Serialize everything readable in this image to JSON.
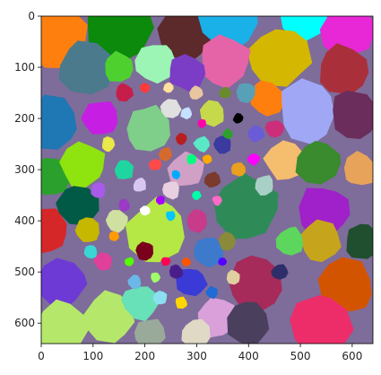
{
  "chart_data": {
    "type": "heatmap",
    "title": "",
    "xlabel": "",
    "ylabel": "",
    "grid": false,
    "legend": "none",
    "xlim": [
      0,
      640
    ],
    "ylim": [
      640,
      0
    ],
    "x_ticks": [
      0,
      100,
      200,
      300,
      400,
      500,
      600
    ],
    "y_ticks": [
      0,
      100,
      200,
      300,
      400,
      500,
      600
    ],
    "description_of_marks": "Segmentation-style label image: many irregular colored regions of varying size, larger toward the edges and smaller toward the center.",
    "regions": [
      {
        "cx": 30,
        "cy": 40,
        "r": 60,
        "color": "#ff7f0e"
      },
      {
        "cx": 150,
        "cy": 20,
        "r": 70,
        "color": "#0b8a0b"
      },
      {
        "cx": 275,
        "cy": 35,
        "r": 55,
        "color": "#5c2a2a"
      },
      {
        "cx": 365,
        "cy": 10,
        "r": 60,
        "color": "#1ab0e8"
      },
      {
        "cx": 505,
        "cy": 5,
        "r": 45,
        "color": "#00ffff"
      },
      {
        "cx": 590,
        "cy": 30,
        "r": 50,
        "color": "#e827d6"
      },
      {
        "cx": 460,
        "cy": 80,
        "r": 60,
        "color": "#d4b700"
      },
      {
        "cx": 585,
        "cy": 105,
        "r": 50,
        "color": "#a9303a"
      },
      {
        "cx": 355,
        "cy": 90,
        "r": 50,
        "color": "#e564a8"
      },
      {
        "cx": 85,
        "cy": 100,
        "r": 55,
        "color": "#4a7a8c"
      },
      {
        "cx": 150,
        "cy": 100,
        "r": 30,
        "color": "#4ed12e"
      },
      {
        "cx": 220,
        "cy": 90,
        "r": 38,
        "color": "#9cf5b4"
      },
      {
        "cx": 280,
        "cy": 110,
        "r": 35,
        "color": "#7b3cc6"
      },
      {
        "cx": 20,
        "cy": 210,
        "r": 55,
        "color": "#1f77b4"
      },
      {
        "cx": 115,
        "cy": 200,
        "r": 35,
        "color": "#c61ee3"
      },
      {
        "cx": 205,
        "cy": 220,
        "r": 45,
        "color": "#7fce8a"
      },
      {
        "cx": 435,
        "cy": 160,
        "r": 35,
        "color": "#ff7f0e"
      },
      {
        "cx": 515,
        "cy": 185,
        "r": 60,
        "color": "#a0a8f5"
      },
      {
        "cx": 605,
        "cy": 195,
        "r": 50,
        "color": "#6b2d5c"
      },
      {
        "cx": 20,
        "cy": 310,
        "r": 40,
        "color": "#2ca02c"
      },
      {
        "cx": 80,
        "cy": 290,
        "r": 45,
        "color": "#8fe30e"
      },
      {
        "cx": 70,
        "cy": 370,
        "r": 40,
        "color": "#005a45"
      },
      {
        "cx": 470,
        "cy": 280,
        "r": 40,
        "color": "#f5bd6e"
      },
      {
        "cx": 535,
        "cy": 285,
        "r": 45,
        "color": "#3a8a2e"
      },
      {
        "cx": 615,
        "cy": 300,
        "r": 35,
        "color": "#e8a35a"
      },
      {
        "cx": 10,
        "cy": 420,
        "r": 45,
        "color": "#d62728"
      },
      {
        "cx": 90,
        "cy": 420,
        "r": 25,
        "color": "#c6b700"
      },
      {
        "cx": 225,
        "cy": 420,
        "r": 60,
        "color": "#b5e845"
      },
      {
        "cx": 395,
        "cy": 375,
        "r": 65,
        "color": "#2e8b57"
      },
      {
        "cx": 545,
        "cy": 380,
        "r": 50,
        "color": "#a020c9"
      },
      {
        "cx": 540,
        "cy": 440,
        "r": 40,
        "color": "#c6a51c"
      },
      {
        "cx": 620,
        "cy": 440,
        "r": 35,
        "color": "#1f4f2f"
      },
      {
        "cx": 40,
        "cy": 520,
        "r": 50,
        "color": "#6e3ad6"
      },
      {
        "cx": 410,
        "cy": 520,
        "r": 55,
        "color": "#a62b5a"
      },
      {
        "cx": 590,
        "cy": 530,
        "r": 55,
        "color": "#d35400"
      },
      {
        "cx": 40,
        "cy": 610,
        "r": 55,
        "color": "#b5e86a"
      },
      {
        "cx": 130,
        "cy": 590,
        "r": 50,
        "color": "#b5e86a"
      },
      {
        "cx": 190,
        "cy": 560,
        "r": 35,
        "color": "#68e0b8"
      },
      {
        "cx": 290,
        "cy": 520,
        "r": 30,
        "color": "#3a3ad6"
      },
      {
        "cx": 340,
        "cy": 590,
        "r": 40,
        "color": "#d9a0d9"
      },
      {
        "cx": 400,
        "cy": 600,
        "r": 45,
        "color": "#4a3f5c"
      },
      {
        "cx": 540,
        "cy": 600,
        "r": 60,
        "color": "#ec2d6a"
      },
      {
        "cx": 210,
        "cy": 620,
        "r": 30,
        "color": "#9aaa9a"
      },
      {
        "cx": 300,
        "cy": 620,
        "r": 30,
        "color": "#e0d9c6"
      },
      {
        "cx": 280,
        "cy": 300,
        "r": 35,
        "color": "#d0a0c6"
      },
      {
        "cx": 320,
        "cy": 460,
        "r": 30,
        "color": "#3d7acb"
      },
      {
        "cx": 200,
        "cy": 460,
        "r": 18,
        "color": "#7a001c"
      },
      {
        "cx": 120,
        "cy": 480,
        "r": 18,
        "color": "#e0409a"
      },
      {
        "cx": 145,
        "cy": 400,
        "r": 22,
        "color": "#cfe0a0"
      },
      {
        "cx": 480,
        "cy": 440,
        "r": 28,
        "color": "#5cd65c"
      },
      {
        "cx": 250,
        "cy": 180,
        "r": 20,
        "color": "#e0e0e0"
      },
      {
        "cx": 330,
        "cy": 190,
        "r": 25,
        "color": "#c6d94a"
      },
      {
        "cx": 350,
        "cy": 250,
        "r": 18,
        "color": "#3a3aa0"
      },
      {
        "cx": 250,
        "cy": 340,
        "r": 18,
        "color": "#e8d0e0"
      },
      {
        "cx": 450,
        "cy": 220,
        "r": 18,
        "color": "#cc2e7a"
      },
      {
        "cx": 395,
        "cy": 150,
        "r": 20,
        "color": "#58a0b8"
      },
      {
        "cx": 160,
        "cy": 300,
        "r": 20,
        "color": "#1fd6a0"
      },
      {
        "cx": 300,
        "cy": 400,
        "r": 22,
        "color": "#c83a8a"
      },
      {
        "cx": 160,
        "cy": 150,
        "r": 18,
        "color": "#c61e4a"
      },
      {
        "cx": 430,
        "cy": 330,
        "r": 20,
        "color": "#a8d0c6"
      },
      {
        "cx": 360,
        "cy": 440,
        "r": 18,
        "color": "#8a8a3a"
      },
      {
        "cx": 330,
        "cy": 320,
        "r": 16,
        "color": "#7a3a2e"
      },
      {
        "cx": 190,
        "cy": 330,
        "r": 14,
        "color": "#d6c6f0"
      },
      {
        "cx": 110,
        "cy": 340,
        "r": 16,
        "color": "#a85ae8"
      },
      {
        "cx": 130,
        "cy": 250,
        "r": 14,
        "color": "#e8e84a"
      },
      {
        "cx": 415,
        "cy": 230,
        "r": 16,
        "color": "#6a5cd6"
      },
      {
        "cx": 240,
        "cy": 270,
        "r": 14,
        "color": "#d66a2e"
      },
      {
        "cx": 310,
        "cy": 250,
        "r": 16,
        "color": "#5ae8c6"
      },
      {
        "cx": 270,
        "cy": 240,
        "r": 12,
        "color": "#b81e1e"
      },
      {
        "cx": 380,
        "cy": 300,
        "r": 14,
        "color": "#e8a01e"
      },
      {
        "cx": 180,
        "cy": 520,
        "r": 14,
        "color": "#6ab8e8"
      },
      {
        "cx": 260,
        "cy": 500,
        "r": 14,
        "color": "#4a1e8a"
      },
      {
        "cx": 230,
        "cy": 550,
        "r": 14,
        "color": "#8ae0f0"
      },
      {
        "cx": 370,
        "cy": 510,
        "r": 14,
        "color": "#e0d0a0"
      },
      {
        "cx": 95,
        "cy": 460,
        "r": 14,
        "color": "#3ad6d6"
      },
      {
        "cx": 460,
        "cy": 500,
        "r": 16,
        "color": "#2e2e6a"
      },
      {
        "cx": 300,
        "cy": 150,
        "r": 14,
        "color": "#e8c6a0"
      },
      {
        "cx": 355,
        "cy": 150,
        "r": 12,
        "color": "#6a8a2e"
      },
      {
        "cx": 280,
        "cy": 190,
        "r": 12,
        "color": "#c6e0ff"
      },
      {
        "cx": 220,
        "cy": 290,
        "r": 12,
        "color": "#ff4a4a"
      },
      {
        "cx": 160,
        "cy": 370,
        "r": 12,
        "color": "#9a3ac6"
      },
      {
        "cx": 270,
        "cy": 560,
        "r": 12,
        "color": "#ffd600"
      },
      {
        "cx": 330,
        "cy": 540,
        "r": 12,
        "color": "#1e6ad6"
      },
      {
        "cx": 410,
        "cy": 280,
        "r": 12,
        "color": "#ff00ff"
      },
      {
        "cx": 200,
        "cy": 380,
        "r": 10,
        "color": "#ffffff"
      },
      {
        "cx": 250,
        "cy": 390,
        "r": 10,
        "color": "#00c6ff"
      },
      {
        "cx": 340,
        "cy": 360,
        "r": 10,
        "color": "#ff6ac6"
      },
      {
        "cx": 220,
        "cy": 510,
        "r": 10,
        "color": "#a0ff6a"
      },
      {
        "cx": 140,
        "cy": 430,
        "r": 10,
        "color": "#ff9a00"
      },
      {
        "cx": 380,
        "cy": 200,
        "r": 10,
        "color": "#000000"
      },
      {
        "cx": 290,
        "cy": 280,
        "r": 10,
        "color": "#00ff7f"
      },
      {
        "cx": 200,
        "cy": 140,
        "r": 10,
        "color": "#ff3a3a"
      },
      {
        "cx": 245,
        "cy": 140,
        "r": 10,
        "color": "#ffe0a0"
      },
      {
        "cx": 360,
        "cy": 230,
        "r": 10,
        "color": "#2ea02e"
      },
      {
        "cx": 310,
        "cy": 210,
        "r": 9,
        "color": "#ff00aa"
      },
      {
        "cx": 260,
        "cy": 310,
        "r": 9,
        "color": "#00aaff"
      },
      {
        "cx": 320,
        "cy": 280,
        "r": 9,
        "color": "#ffaa00"
      },
      {
        "cx": 230,
        "cy": 360,
        "r": 9,
        "color": "#aa00ff"
      },
      {
        "cx": 300,
        "cy": 350,
        "r": 9,
        "color": "#00ffaa"
      },
      {
        "cx": 280,
        "cy": 480,
        "r": 9,
        "color": "#ff5500"
      },
      {
        "cx": 350,
        "cy": 480,
        "r": 9,
        "color": "#5500ff"
      },
      {
        "cx": 170,
        "cy": 480,
        "r": 9,
        "color": "#55ff00"
      },
      {
        "cx": 240,
        "cy": 480,
        "r": 9,
        "color": "#ff0055"
      }
    ]
  }
}
